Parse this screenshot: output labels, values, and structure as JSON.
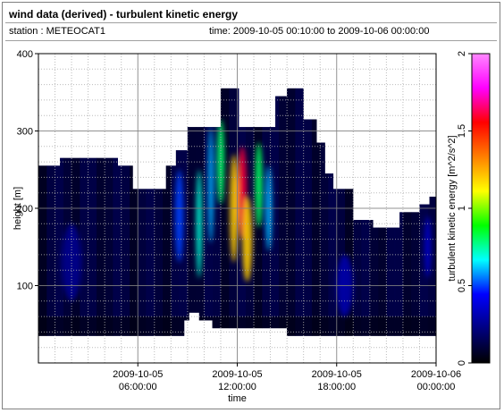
{
  "header": {
    "title": "wind data (derived) - turbulent kinetic energy",
    "station_label": "station : METEOCAT1",
    "time_label": "time: 2009-10-05 00:10:00 to 2009-10-06 00:00:00"
  },
  "chart_data": {
    "type": "heatmap",
    "title": "wind data (derived) - turbulent kinetic energy",
    "xlabel": "time",
    "ylabel": "height [m]",
    "xlim_hours": [
      0,
      24
    ],
    "ylim": [
      0,
      400
    ],
    "x_ticks": [
      {
        "hour": 6,
        "line1": "2009-10-05",
        "line2": "06:00:00"
      },
      {
        "hour": 12,
        "line1": "2009-10-05",
        "line2": "12:00:00"
      },
      {
        "hour": 18,
        "line1": "2009-10-05",
        "line2": "18:00:00"
      },
      {
        "hour": 24,
        "line1": "2009-10-06",
        "line2": "00:00:00"
      }
    ],
    "y_ticks": [
      100,
      200,
      300,
      400
    ],
    "grid": true,
    "colorbar": {
      "label": "turbulent kinetic energy [m^2/s^2]",
      "min": 0,
      "max": 2,
      "ticks": [
        0,
        0.5,
        1,
        1.5,
        2
      ],
      "tick_labels": [
        "0",
        "0.5",
        "1",
        "1.5",
        "2"
      ],
      "colormap": [
        "#000000",
        "#00007f",
        "#0000ff",
        "#00ffff",
        "#00ff00",
        "#ffff00",
        "#ff7f00",
        "#ff0000",
        "#ff00ff",
        "#ff88ff"
      ]
    },
    "top_envelope": [
      {
        "hour": 0.0,
        "height": 255
      },
      {
        "hour": 1.3,
        "height": 265
      },
      {
        "hour": 4.8,
        "height": 255
      },
      {
        "hour": 5.7,
        "height": 225
      },
      {
        "hour": 7.7,
        "height": 255
      },
      {
        "hour": 8.3,
        "height": 275
      },
      {
        "hour": 9.0,
        "height": 305
      },
      {
        "hour": 11.0,
        "height": 355
      },
      {
        "hour": 12.1,
        "height": 305
      },
      {
        "hour": 13.4,
        "height": 305
      },
      {
        "hour": 14.3,
        "height": 345
      },
      {
        "hour": 15.0,
        "height": 355
      },
      {
        "hour": 16.0,
        "height": 315
      },
      {
        "hour": 16.8,
        "height": 285
      },
      {
        "hour": 17.3,
        "height": 245
      },
      {
        "hour": 17.8,
        "height": 225
      },
      {
        "hour": 19.0,
        "height": 185
      },
      {
        "hour": 20.2,
        "height": 175
      },
      {
        "hour": 21.8,
        "height": 195
      },
      {
        "hour": 23.0,
        "height": 205
      },
      {
        "hour": 23.6,
        "height": 215
      },
      {
        "hour": 24.0,
        "height": 205
      }
    ],
    "bottom_envelope": [
      {
        "hour": 0.0,
        "height": 35
      },
      {
        "hour": 8.8,
        "height": 35
      },
      {
        "hour": 9.1,
        "height": 55
      },
      {
        "hour": 9.7,
        "height": 65
      },
      {
        "hour": 10.5,
        "height": 55
      },
      {
        "hour": 11.7,
        "height": 45
      },
      {
        "hour": 15.0,
        "height": 45
      },
      {
        "hour": 15.3,
        "height": 35
      },
      {
        "hour": 24.0,
        "height": 35
      }
    ],
    "hotspots": [
      {
        "hour": 12.3,
        "height": 220,
        "value": 1.6,
        "width_hours": 0.55,
        "height_span": 120
      },
      {
        "hour": 11.8,
        "height": 200,
        "value": 1.2,
        "width_hours": 0.5,
        "height_span": 140
      },
      {
        "hour": 12.6,
        "height": 160,
        "value": 1.2,
        "width_hours": 0.6,
        "height_span": 110
      },
      {
        "hour": 11.0,
        "height": 260,
        "value": 0.8,
        "width_hours": 0.45,
        "height_span": 110
      },
      {
        "hour": 13.3,
        "height": 230,
        "value": 0.8,
        "width_hours": 0.45,
        "height_span": 110
      },
      {
        "hour": 9.7,
        "height": 180,
        "value": 0.7,
        "width_hours": 0.35,
        "height_span": 140
      },
      {
        "hour": 10.4,
        "height": 230,
        "value": 0.6,
        "width_hours": 0.35,
        "height_span": 150
      },
      {
        "hour": 13.9,
        "height": 200,
        "value": 0.6,
        "width_hours": 0.4,
        "height_span": 110
      },
      {
        "hour": 8.5,
        "height": 190,
        "value": 0.5,
        "width_hours": 0.5,
        "height_span": 120
      },
      {
        "hour": 2.0,
        "height": 130,
        "value": 0.25,
        "width_hours": 1.2,
        "height_span": 100
      },
      {
        "hour": 18.5,
        "height": 100,
        "value": 0.3,
        "width_hours": 1.0,
        "height_span": 80
      },
      {
        "hour": 23.5,
        "height": 150,
        "value": 0.35,
        "width_hours": 0.4,
        "height_span": 80
      }
    ]
  }
}
